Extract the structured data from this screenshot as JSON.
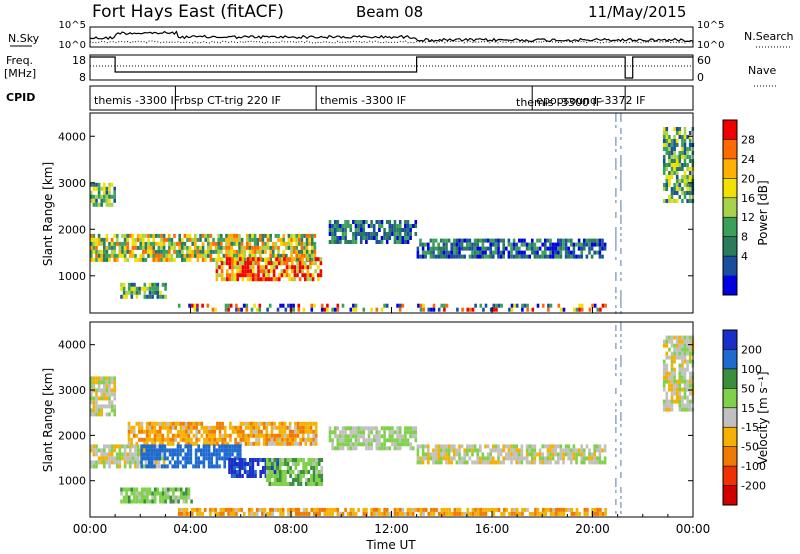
{
  "header": {
    "title": "Fort Hays East (fitACF)",
    "beam": "Beam 08",
    "date": "11/May/2015"
  },
  "top_panels": {
    "nsky_label": "N.Sky",
    "nsearch_label": "N.Search",
    "noise_ticks": [
      "10^5",
      "10^0"
    ],
    "freq_label_1": "Freq.",
    "freq_label_2": "[MHz]",
    "freq_ticks": [
      "18",
      "8"
    ],
    "nave_label": "Nave",
    "nave_ticks": [
      "60",
      "0"
    ],
    "cpid_label": "CPID"
  },
  "cpid_segments": [
    {
      "start_hr": 0.0,
      "end_hr": 3.4,
      "label": "themis -3300 IF"
    },
    {
      "start_hr": 3.4,
      "end_hr": 9.0,
      "label": "rbsp CT-trig 220 IF"
    },
    {
      "start_hr": 9.0,
      "end_hr": 17.6,
      "label": "themis -3300 IF"
    },
    {
      "start_hr": 17.6,
      "end_hr": 21.3,
      "label": "epopsound -3372 IF"
    },
    {
      "start_hr": 21.3,
      "end_hr": 24.0,
      "label": ""
    }
  ],
  "cpid_overlap_label": "themis -3300 IF",
  "x_axis": {
    "label": "Time UT",
    "ticks": [
      "00:00",
      "04:00",
      "08:00",
      "12:00",
      "16:00",
      "20:00",
      "00:00"
    ]
  },
  "colorbars": {
    "power": {
      "label": "Power [dB]",
      "ticks": [
        "28",
        "24",
        "20",
        "16",
        "12",
        "8",
        "4"
      ],
      "colors": [
        "#f10000",
        "#ff6a00",
        "#ffb000",
        "#f2e000",
        "#a8d24a",
        "#3aa05a",
        "#2a7a5c",
        "#1a4fa0",
        "#0000e0"
      ]
    },
    "velocity": {
      "label": "Velocity [m s⁻¹]",
      "ticks": [
        "200",
        "100",
        "50",
        "15",
        "-15",
        "-50",
        "-100",
        "-200"
      ],
      "colors": [
        "#1a2fc8",
        "#1e6ad0",
        "#3b8f3b",
        "#7fd04a",
        "#c0c0c0",
        "#f5b000",
        "#f07a00",
        "#f03000",
        "#d00000"
      ]
    }
  },
  "chart_data": [
    {
      "type": "heatmap",
      "title": "Power",
      "xlabel": "Time UT",
      "ylabel": "Slant Range [km]",
      "xlim_hours": [
        0,
        24
      ],
      "ylim": [
        200,
        4500
      ],
      "y_ticks": [
        1000,
        2000,
        3000,
        4000
      ],
      "colorbar_label": "Power [dB]",
      "colorbar_ticks": [
        28,
        24,
        20,
        16,
        12,
        8,
        4
      ],
      "regions": [
        {
          "t0": 0.0,
          "t1": 1.0,
          "r0": 2500,
          "r1": 3000,
          "level": "medium"
        },
        {
          "t0": 0.0,
          "t1": 8.9,
          "r0": 1300,
          "r1": 1900,
          "level": "high"
        },
        {
          "t0": 1.2,
          "t1": 3.0,
          "r0": 550,
          "r1": 850,
          "level": "medium"
        },
        {
          "t0": 5.0,
          "t1": 9.2,
          "r0": 900,
          "r1": 1400,
          "level": "very-high"
        },
        {
          "t0": 9.5,
          "t1": 13.0,
          "r0": 1700,
          "r1": 2200,
          "level": "low"
        },
        {
          "t0": 13.0,
          "t1": 20.5,
          "r0": 1400,
          "r1": 1800,
          "level": "low"
        },
        {
          "t0": 22.8,
          "t1": 24.0,
          "r0": 2600,
          "r1": 4200,
          "level": "medium"
        },
        {
          "t0": 3.5,
          "t1": 20.5,
          "r0": 250,
          "r1": 400,
          "level": "mixed"
        }
      ]
    },
    {
      "type": "heatmap",
      "title": "Velocity",
      "xlabel": "Time UT",
      "ylabel": "Slant Range [km]",
      "xlim_hours": [
        0,
        24
      ],
      "ylim": [
        200,
        4500
      ],
      "y_ticks": [
        1000,
        2000,
        3000,
        4000
      ],
      "colorbar_label": "Velocity [m s⁻¹]",
      "colorbar_ticks": [
        200,
        100,
        50,
        15,
        -15,
        -50,
        -100,
        -200
      ],
      "regions": [
        {
          "t0": 0.0,
          "t1": 1.0,
          "r0": 2500,
          "r1": 3300,
          "velocity": 0
        },
        {
          "t0": 0.0,
          "t1": 3.0,
          "r0": 1300,
          "r1": 1800,
          "velocity": 0
        },
        {
          "t0": 1.5,
          "t1": 9.0,
          "r0": 1800,
          "r1": 2300,
          "velocity": -40
        },
        {
          "t0": 2.0,
          "t1": 6.0,
          "r0": 1300,
          "r1": 1800,
          "velocity": 150
        },
        {
          "t0": 5.5,
          "t1": 7.5,
          "r0": 1100,
          "r1": 1500,
          "velocity": 220
        },
        {
          "t0": 7.0,
          "t1": 9.2,
          "r0": 900,
          "r1": 1500,
          "velocity": 40
        },
        {
          "t0": 1.2,
          "t1": 4.0,
          "r0": 550,
          "r1": 850,
          "velocity": 40
        },
        {
          "t0": 9.5,
          "t1": 13.0,
          "r0": 1700,
          "r1": 2200,
          "velocity": 20
        },
        {
          "t0": 13.0,
          "t1": 20.5,
          "r0": 1400,
          "r1": 1800,
          "velocity": 0
        },
        {
          "t0": 22.8,
          "t1": 24.0,
          "r0": 2600,
          "r1": 4200,
          "velocity": 0
        },
        {
          "t0": 3.5,
          "t1": 20.5,
          "r0": 250,
          "r1": 400,
          "velocity": -40
        }
      ]
    }
  ]
}
